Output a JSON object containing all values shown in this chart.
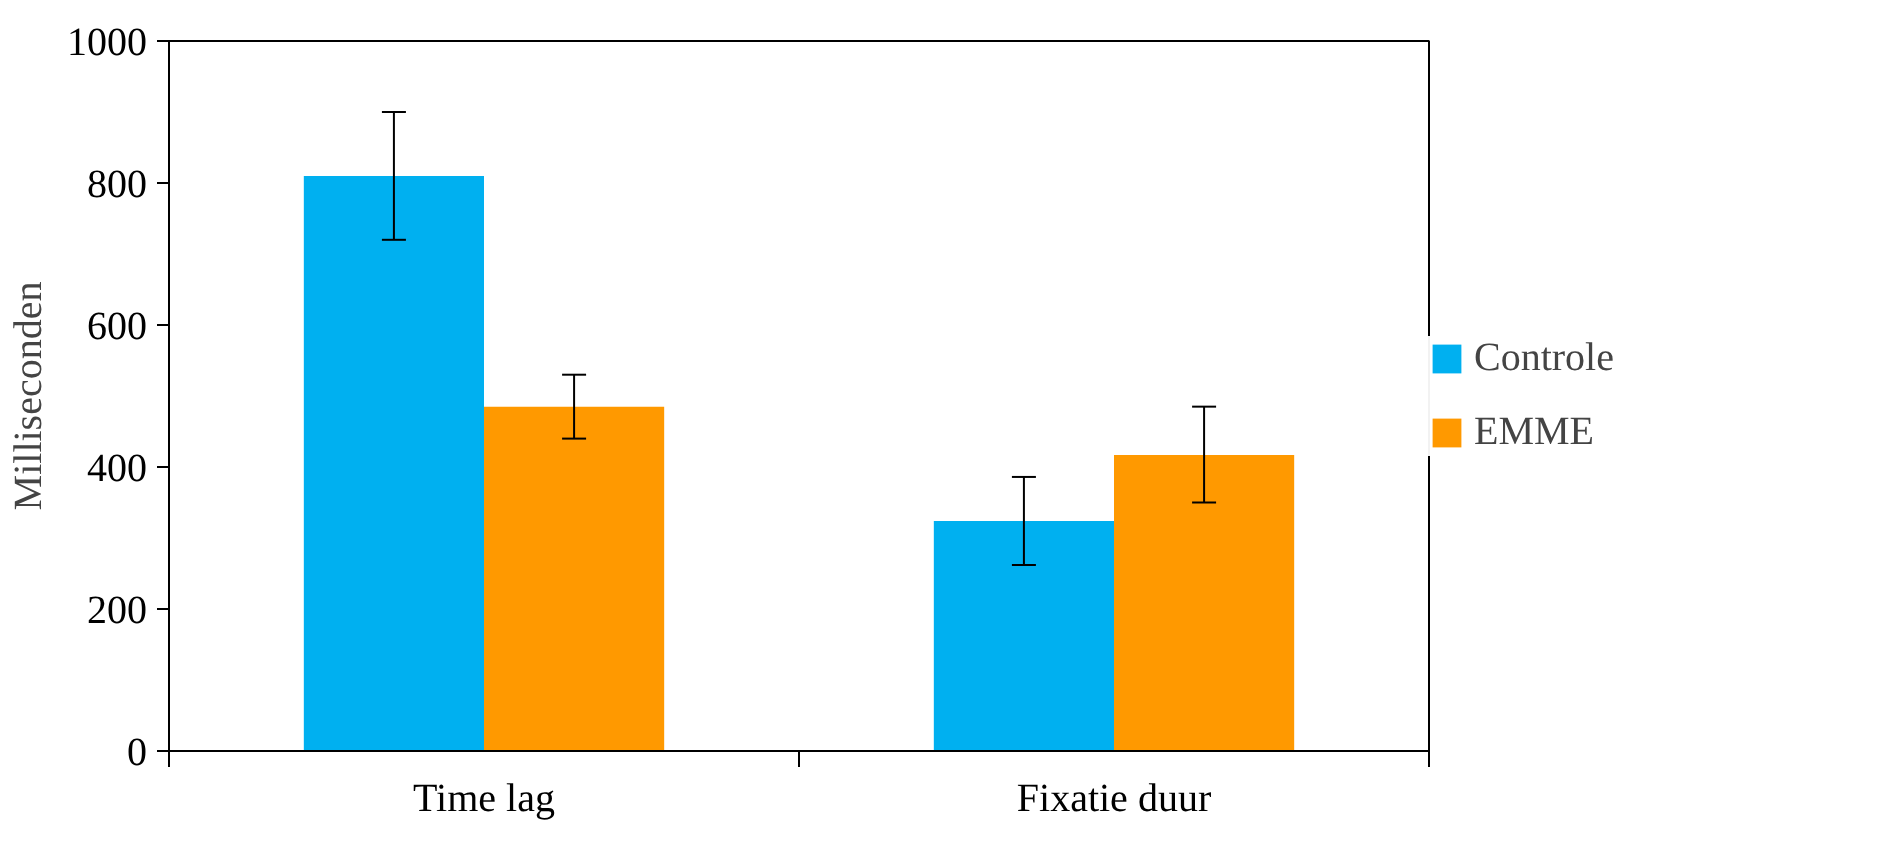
{
  "chart_data": {
    "type": "bar",
    "ylabel": "Milliseconden",
    "categories": [
      "Time lag",
      "Fixatie duur"
    ],
    "series": [
      {
        "name": "Controle",
        "color": "#00b0f0",
        "values": [
          810,
          324
        ],
        "errors": [
          [
            720,
            900
          ],
          [
            262,
            386
          ]
        ]
      },
      {
        "name": "EMME",
        "color": "#ff9900",
        "values": [
          485,
          417
        ],
        "errors": [
          [
            440,
            530
          ],
          [
            350,
            485
          ]
        ]
      }
    ],
    "ylim": [
      0,
      1000
    ],
    "yticks": [
      0,
      200,
      400,
      600,
      800,
      1000
    ],
    "grid": false,
    "legend": "right"
  }
}
